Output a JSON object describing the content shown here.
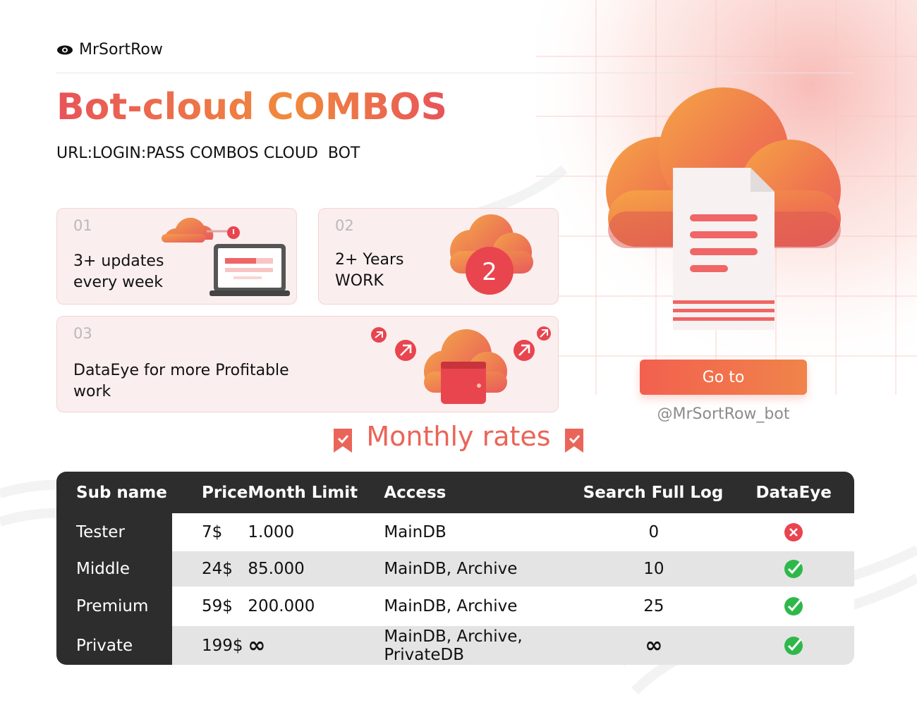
{
  "colors": {
    "accent": "#ea6559",
    "accent_orange": "#f08a3c",
    "dark": "#2d2d2d",
    "card_bg": "#fbeeee",
    "check_green": "#2fb84a",
    "cross_red": "#e8454f"
  },
  "brand": {
    "name": "MrSortRow",
    "icon": "eye-icon"
  },
  "header": {
    "title": "Bot-cloud COMBOS",
    "subtitle": "URL:LOGIN:PASS COMBOS CLOUD  BOT"
  },
  "features": [
    {
      "number": "01",
      "text": "3+ updates\nevery week",
      "icon": "laptop-cloud-icon"
    },
    {
      "number": "02",
      "text": "2+ Years\nWORK",
      "icon": "cloud-badge-icon",
      "badge": "2"
    },
    {
      "number": "03",
      "text": "DataEye for more Profitable\nwork",
      "icon": "cloud-wallet-icon"
    }
  ],
  "hero": {
    "icon": "cloud-document-icon",
    "button_label": "Go to",
    "handle": "@MrSortRow_bot"
  },
  "section": {
    "title": "Monthly rates",
    "icon": "bookmark-check-icon"
  },
  "table": {
    "headers": [
      "Sub name",
      "Price",
      "Month Limit",
      "Access",
      "Search Full Log",
      "DataEye"
    ],
    "rows": [
      {
        "sub": "Tester",
        "price": "7$",
        "limit": "1.000",
        "access": "MainDB",
        "search": "0",
        "dataeye": "cross-icon"
      },
      {
        "sub": "Middle",
        "price": "24$",
        "limit": "85.000",
        "access": "MainDB, Archive",
        "search": "10",
        "dataeye": "check-icon"
      },
      {
        "sub": "Premium",
        "price": "59$",
        "limit": "200.000",
        "access": "MainDB, Archive",
        "search": "25",
        "dataeye": "check-icon"
      },
      {
        "sub": "Private",
        "price": "199$",
        "limit": "∞",
        "access": "MainDB, Archive, PrivateDB",
        "search": "∞",
        "dataeye": "check-icon"
      }
    ]
  }
}
